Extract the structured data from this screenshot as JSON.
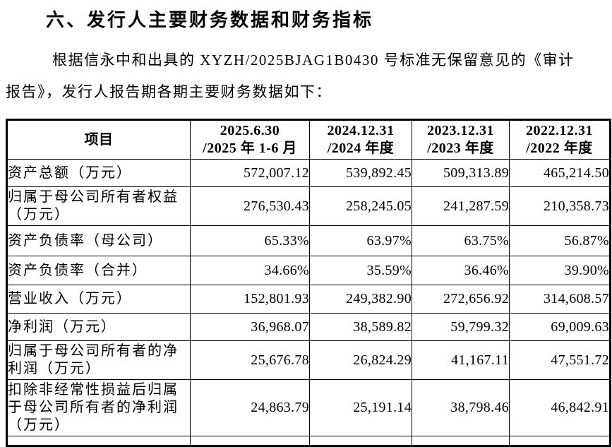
{
  "page": {
    "heading": "六、发行人主要财务数据和财务指标",
    "paragraph": {
      "line1": "根据信永中和出具的 XYZH/2025BJAG1B0430 号标准无保留意见的《审计",
      "line2": "报告》，发行人报告期各期主要财务数据如下："
    }
  },
  "table": {
    "header": {
      "item_label": "项目",
      "periods": [
        {
          "line1": "2025.6.30",
          "line2": "/2025 年 1-6 月"
        },
        {
          "line1": "2024.12.31",
          "line2": "/2024 年度"
        },
        {
          "line1": "2023.12.31",
          "line2": "/2023 年度"
        },
        {
          "line1": "2022.12.31",
          "line2": "/2022 年度"
        }
      ]
    },
    "rows": [
      {
        "label": "资产总额（万元）",
        "values": [
          "572,007.12",
          "539,892.45",
          "509,313.89",
          "465,214.50"
        ]
      },
      {
        "label": "归属于母公司所有者权益（万元）",
        "values": [
          "276,530.43",
          "258,245.05",
          "241,287.59",
          "210,358.73"
        ]
      },
      {
        "label": "资产负债率（母公司）",
        "values": [
          "65.33%",
          "63.97%",
          "63.75%",
          "56.87%"
        ]
      },
      {
        "label": "资产负债率（合并）",
        "values": [
          "34.66%",
          "35.59%",
          "36.46%",
          "39.90%"
        ]
      },
      {
        "label": "营业收入（万元）",
        "values": [
          "152,801.93",
          "249,382.90",
          "272,656.92",
          "314,608.57"
        ]
      },
      {
        "label": "净利润（万元）",
        "values": [
          "36,968.07",
          "38,589.82",
          "59,799.32",
          "69,009.63"
        ]
      },
      {
        "label": "归属于母公司所有者的净利润（万元）",
        "values": [
          "25,676.78",
          "26,824.29",
          "41,167.11",
          "47,551.72"
        ]
      },
      {
        "label": "扣除非经常性损益后归属于母公司所有者的净利润（万元）",
        "values": [
          "24,863.79",
          "25,191.14",
          "38,798.46",
          "46,842.91"
        ]
      }
    ]
  }
}
